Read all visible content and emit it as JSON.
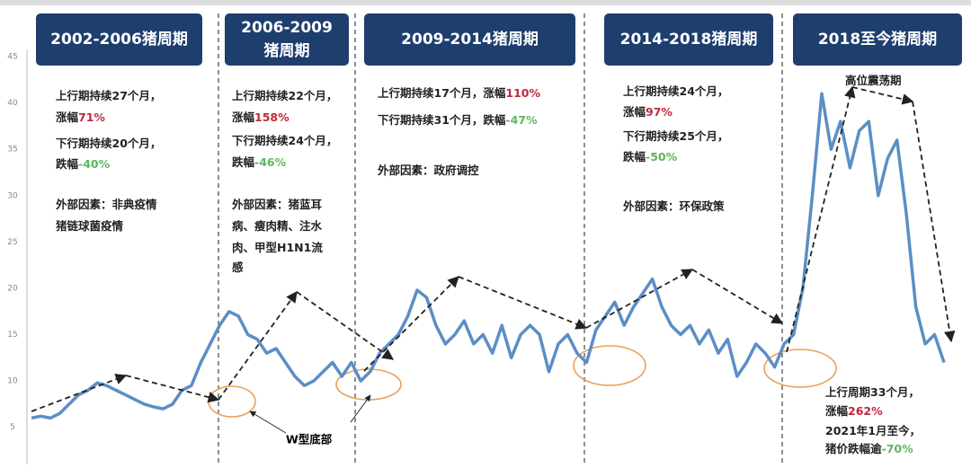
{
  "chart_data": {
    "type": "line",
    "ylim": [
      1,
      45
    ],
    "yticks": [
      5,
      10,
      15,
      20,
      25,
      30,
      35,
      40,
      45
    ],
    "line_color": "#5b8ec6",
    "header_color": "#1e3f6e",
    "ellipse_color": "#e8a25a",
    "categories": [
      null,
      null,
      null,
      null,
      null,
      null,
      null,
      null,
      null,
      null,
      null,
      null,
      null,
      null,
      null,
      null,
      null,
      null,
      null,
      null,
      null,
      null,
      null,
      null,
      null,
      null,
      null,
      null,
      null,
      null,
      null,
      null,
      null,
      null,
      null,
      null,
      null,
      null,
      null,
      null,
      null,
      null,
      null,
      null,
      null,
      null,
      null,
      null,
      null,
      null,
      null,
      null,
      null,
      null,
      null,
      null,
      null,
      null,
      null,
      null,
      null,
      null,
      null,
      null,
      null,
      null,
      null,
      null,
      null,
      null,
      null,
      null,
      null,
      null,
      null,
      null,
      null,
      null,
      null,
      null,
      null,
      null,
      null,
      null,
      null,
      null,
      null,
      null,
      null,
      null,
      null,
      null,
      null,
      null,
      null,
      null,
      null,
      null
    ],
    "values": [
      6,
      6.2,
      6,
      6.5,
      7.5,
      8.5,
      9,
      9.8,
      9.5,
      9,
      8.5,
      8,
      7.5,
      7.2,
      7,
      7.5,
      9,
      9.5,
      12,
      14,
      16,
      17.5,
      17,
      15,
      14.5,
      13,
      13.5,
      12,
      10.5,
      9.5,
      10,
      11,
      12,
      10.5,
      12,
      10,
      11,
      13,
      14,
      15,
      17,
      19.8,
      19,
      16,
      14,
      15,
      16.5,
      14,
      15,
      13,
      16,
      12.5,
      15,
      16,
      15,
      11,
      14,
      15,
      13,
      12,
      15.5,
      17,
      18.5,
      16,
      18,
      19.5,
      21,
      18,
      16,
      15,
      16,
      14,
      15.5,
      13,
      14.5,
      10.5,
      12,
      14,
      13,
      11.5,
      14,
      15,
      20,
      30,
      41,
      35,
      38,
      33,
      37,
      38,
      30,
      34,
      36,
      28,
      18,
      14,
      15,
      12
    ],
    "panels": [
      {
        "header": [
          "2002-2006猪周期"
        ],
        "notes": [
          [
            {
              "text": "上行期持续27个月，",
              "color": "#222"
            }
          ],
          [
            {
              "text": "涨幅",
              "color": "#222"
            },
            {
              "text": "71%",
              "color": "#c0283c"
            }
          ],
          [
            {
              "text": "下行期持续20个月，",
              "color": "#222"
            }
          ],
          [
            {
              "text": "跌幅",
              "color": "#222"
            },
            {
              "text": "-40%",
              "color": "#5cb85c"
            }
          ],
          [
            {
              "text": "外部因素：非典疫情",
              "color": "#222"
            }
          ],
          [
            {
              "text": "猪链球菌疫情",
              "color": "#222"
            }
          ]
        ]
      },
      {
        "header": [
          "2006-2009",
          "猪周期"
        ],
        "notes": [
          [
            {
              "text": "上行期持续22个月，",
              "color": "#222"
            }
          ],
          [
            {
              "text": "涨幅",
              "color": "#222"
            },
            {
              "text": "158%",
              "color": "#c0283c"
            }
          ],
          [
            {
              "text": "下行期持续24个月，",
              "color": "#222"
            }
          ],
          [
            {
              "text": "跌幅",
              "color": "#222"
            },
            {
              "text": "-46%",
              "color": "#5cb85c"
            }
          ],
          [
            {
              "text": "外部因素：猪蓝耳",
              "color": "#222"
            }
          ],
          [
            {
              "text": "病、瘦肉精、注水",
              "color": "#222"
            }
          ],
          [
            {
              "text": "肉、甲型H1N1流",
              "color": "#222"
            }
          ],
          [
            {
              "text": "感",
              "color": "#222"
            }
          ]
        ]
      },
      {
        "header": [
          "2009-2014猪周期"
        ],
        "notes": [
          [
            {
              "text": "上行期持续17个月，涨幅",
              "color": "#222"
            },
            {
              "text": "110%",
              "color": "#c0283c"
            }
          ],
          [
            {
              "text": "下行期持续31个月，跌幅",
              "color": "#222"
            },
            {
              "text": "-47%",
              "color": "#5cb85c"
            }
          ],
          [
            {
              "text": "外部因素：政府调控",
              "color": "#222"
            }
          ]
        ]
      },
      {
        "header": [
          "2014-2018猪周期"
        ],
        "notes": [
          [
            {
              "text": "上行期持续24个月，",
              "color": "#222"
            }
          ],
          [
            {
              "text": "涨幅",
              "color": "#222"
            },
            {
              "text": "97%",
              "color": "#c0283c"
            }
          ],
          [
            {
              "text": "下行期持续25个月，",
              "color": "#222"
            }
          ],
          [
            {
              "text": "跌幅",
              "color": "#222"
            },
            {
              "text": "-50%",
              "color": "#5cb85c"
            }
          ],
          [
            {
              "text": "外部因素：环保政策",
              "color": "#222"
            }
          ]
        ]
      },
      {
        "header": [
          "2018至今猪周期"
        ],
        "notes": [
          [
            {
              "text": "高位震荡期",
              "color": "#222"
            }
          ],
          [
            {
              "text": "上行周期33个月，",
              "color": "#222"
            }
          ],
          [
            {
              "text": "涨幅",
              "color": "#222"
            },
            {
              "text": "262%",
              "color": "#c0283c"
            }
          ],
          [
            {
              "text": "2021年1月至今，",
              "color": "#222"
            }
          ],
          [
            {
              "text": "猪价跌幅逾",
              "color": "#222"
            },
            {
              "text": "-70%",
              "color": "#5cb85c"
            }
          ]
        ]
      }
    ],
    "bottom_label": "W型底部"
  }
}
